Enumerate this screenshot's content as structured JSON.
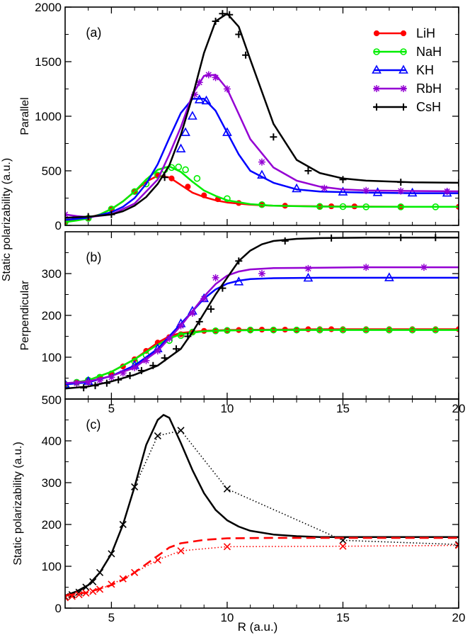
{
  "figure": {
    "ylabel_shared": "Static polarizability (a.u.)",
    "xlabel": "R (a.u.)"
  },
  "colors": {
    "LiH": "#ff0000",
    "NaH": "#00ee00",
    "KH": "#0000ff",
    "RbH": "#9400d3",
    "CsH": "#000000"
  },
  "chart_data": [
    {
      "type": "line",
      "panel_label": "(a)",
      "ylabel": "Parallel",
      "xlim": [
        3,
        20
      ],
      "ylim": [
        0,
        2000
      ],
      "yticks": [
        0,
        500,
        1000,
        1500,
        2000
      ],
      "xticks": [
        5,
        10,
        15,
        20
      ],
      "xtick_labels_shown": false,
      "legend": "top-right",
      "series": [
        {
          "name": "LiH",
          "marker": "filled-circle",
          "x": [
            3,
            3.5,
            4,
            4.5,
            5,
            5.5,
            6,
            6.5,
            7,
            7.5,
            8,
            8.5,
            9,
            9.5,
            10,
            11,
            12,
            14,
            16,
            18,
            20
          ],
          "y": [
            35,
            50,
            70,
            100,
            150,
            220,
            310,
            400,
            455,
            440,
            370,
            300,
            260,
            230,
            210,
            190,
            180,
            175,
            172,
            170,
            170
          ],
          "marker_x": [
            3,
            4,
            5,
            6,
            7,
            7.6,
            8.3,
            9,
            9.6,
            10.5,
            11.5,
            12.5,
            14,
            14.5,
            15.5,
            17.5,
            20
          ],
          "marker_y": [
            35,
            70,
            150,
            310,
            455,
            430,
            355,
            275,
            240,
            205,
            188,
            180,
            176,
            175,
            174,
            172,
            170
          ]
        },
        {
          "name": "NaH",
          "marker": "open-circle",
          "x": [
            3,
            3.5,
            4,
            4.5,
            5,
            5.5,
            6,
            6.5,
            7,
            7.5,
            8,
            8.5,
            9,
            9.5,
            10,
            11,
            12,
            14,
            16,
            18,
            20
          ],
          "y": [
            30,
            45,
            65,
            100,
            150,
            220,
            310,
            420,
            510,
            540,
            490,
            400,
            320,
            270,
            230,
            195,
            180,
            172,
            170,
            170,
            170
          ],
          "marker_x": [
            3,
            4,
            5,
            6,
            6.5,
            7,
            7.3,
            7.6,
            7.9,
            8.2,
            8.7,
            10,
            11.5,
            14,
            15,
            16,
            17.5,
            19
          ],
          "marker_y": [
            30,
            65,
            150,
            310,
            380,
            460,
            510,
            530,
            535,
            510,
            430,
            245,
            190,
            173,
            172,
            170,
            170,
            170
          ]
        },
        {
          "name": "KH",
          "marker": "open-triangle",
          "x": [
            3,
            4,
            5,
            5.5,
            6,
            6.5,
            7,
            7.5,
            8,
            8.5,
            9,
            9.5,
            10,
            10.5,
            11,
            12,
            13,
            14,
            16,
            18,
            20
          ],
          "y": [
            50,
            70,
            120,
            170,
            250,
            380,
            560,
            800,
            1030,
            1160,
            1160,
            1050,
            850,
            650,
            500,
            390,
            330,
            310,
            300,
            295,
            295
          ],
          "marker_x": [
            8,
            8.2,
            8.5,
            8.8,
            9.1,
            10,
            11.5,
            13,
            15,
            16.5,
            18,
            19.5
          ],
          "marker_y": [
            700,
            850,
            1000,
            1150,
            1140,
            850,
            460,
            335,
            305,
            300,
            296,
            295
          ]
        },
        {
          "name": "RbH",
          "marker": "asterisk",
          "x": [
            3,
            3.5,
            4,
            5,
            6,
            7,
            7.5,
            8,
            8.5,
            9,
            9.5,
            10,
            10.5,
            11,
            12,
            13,
            14,
            15,
            16,
            18,
            20
          ],
          "y": [
            100,
            85,
            75,
            100,
            200,
            420,
            650,
            900,
            1200,
            1370,
            1380,
            1250,
            1020,
            790,
            530,
            410,
            355,
            330,
            320,
            315,
            312
          ],
          "marker_x": [
            3,
            8.6,
            8.8,
            9.2,
            9.5,
            10,
            11.5,
            14.2,
            16,
            17.5,
            19.5
          ],
          "marker_y": [
            100,
            1200,
            1310,
            1380,
            1355,
            1250,
            580,
            340,
            320,
            315,
            312
          ]
        },
        {
          "name": "CsH",
          "marker": "plus",
          "x": [
            3,
            4,
            5,
            5.5,
            6,
            6.5,
            7,
            7.5,
            8,
            8.5,
            9,
            9.5,
            10,
            10.5,
            11,
            12,
            13,
            14,
            15,
            16,
            18,
            20
          ],
          "y": [
            70,
            80,
            100,
            130,
            180,
            260,
            380,
            550,
            830,
            1180,
            1580,
            1870,
            1940,
            1820,
            1520,
            930,
            600,
            480,
            430,
            410,
            395,
            390
          ],
          "marker_x": [
            3,
            4,
            5,
            7.3,
            9.5,
            9.8,
            10.1,
            10.5,
            10.8,
            12,
            13.5,
            15,
            17.5,
            20
          ],
          "marker_y": [
            70,
            80,
            100,
            440,
            1870,
            1940,
            1930,
            1750,
            1560,
            810,
            500,
            420,
            395,
            390
          ]
        }
      ]
    },
    {
      "type": "line",
      "panel_label": "(b)",
      "ylabel": "Perpendicular",
      "xlim": [
        3,
        20
      ],
      "ylim": [
        0,
        400
      ],
      "yticks": [
        100,
        200,
        300
      ],
      "xticks": [
        5,
        10,
        15,
        20
      ],
      "xtick_labels_shown": true,
      "series": [
        {
          "name": "LiH",
          "marker": "filled-circle",
          "x": [
            3,
            4,
            5,
            6,
            6.5,
            7,
            7.5,
            8,
            9,
            10,
            12,
            14,
            16,
            18,
            20
          ],
          "y": [
            35,
            45,
            65,
            95,
            115,
            135,
            150,
            158,
            163,
            165,
            166,
            167,
            167,
            167,
            167
          ],
          "marker_x": [
            3,
            3.5,
            4,
            4.5,
            5,
            5.5,
            6,
            6.5,
            7,
            7.5,
            8,
            8.5,
            9,
            9.5,
            10,
            10.5,
            11,
            11.5,
            12,
            12.5,
            13,
            13.5,
            14,
            14.5,
            15,
            16,
            17,
            18,
            19,
            20
          ],
          "marker_y": [
            35,
            40,
            45,
            52,
            60,
            78,
            95,
            115,
            135,
            148,
            155,
            160,
            163,
            164,
            165,
            165,
            166,
            166,
            166,
            166,
            166,
            167,
            167,
            167,
            167,
            167,
            167,
            167,
            167,
            167
          ]
        },
        {
          "name": "NaH",
          "marker": "open-circle",
          "x": [
            3,
            4,
            5,
            6,
            7,
            7.5,
            8,
            9,
            10,
            12,
            14,
            16,
            18,
            20
          ],
          "y": [
            35,
            45,
            65,
            95,
            130,
            145,
            155,
            162,
            164,
            165,
            165,
            165,
            165,
            165
          ],
          "marker_x": [
            3,
            3.5,
            4,
            4.5,
            5,
            6,
            6.5,
            7.5,
            8,
            8.5,
            9.5,
            10,
            11,
            12,
            13,
            14,
            15,
            16,
            17,
            18,
            19
          ],
          "marker_y": [
            35,
            40,
            45,
            52,
            60,
            90,
            105,
            140,
            152,
            160,
            163,
            164,
            165,
            165,
            165,
            165,
            165,
            165,
            165,
            165,
            165
          ]
        },
        {
          "name": "KH",
          "marker": "open-triangle",
          "x": [
            3,
            4,
            5,
            6,
            7,
            8,
            8.5,
            9,
            9.5,
            10,
            10.5,
            11,
            12,
            14,
            16,
            18,
            20
          ],
          "y": [
            35,
            40,
            55,
            80,
            120,
            180,
            210,
            240,
            262,
            276,
            283,
            287,
            289,
            290,
            290,
            290,
            290
          ],
          "marker_x": [
            3,
            4,
            6,
            7,
            8,
            8.5,
            9,
            10.5,
            13.5,
            17
          ],
          "marker_y": [
            35,
            42,
            80,
            120,
            180,
            210,
            240,
            280,
            289,
            290
          ]
        },
        {
          "name": "RbH",
          "marker": "asterisk",
          "x": [
            3,
            4,
            5,
            6,
            7,
            8,
            9,
            9.5,
            10,
            10.5,
            11,
            12,
            14,
            16,
            18,
            20
          ],
          "y": [
            38,
            42,
            55,
            75,
            115,
            175,
            245,
            275,
            295,
            305,
            310,
            313,
            314,
            315,
            315,
            315
          ],
          "marker_x": [
            3.5,
            4,
            4.5,
            5,
            5.5,
            6,
            6.5,
            7,
            7.5,
            8,
            8.5,
            9,
            9.5,
            11.5,
            13.5,
            16,
            18.5
          ],
          "marker_y": [
            38,
            40,
            45,
            52,
            62,
            75,
            92,
            115,
            145,
            175,
            205,
            240,
            290,
            300,
            312,
            315,
            315
          ]
        },
        {
          "name": "CsH",
          "marker": "plus",
          "x": [
            3,
            4,
            5,
            6,
            7,
            8,
            8.5,
            9,
            9.5,
            10,
            10.5,
            11,
            11.5,
            12,
            13,
            14,
            16,
            18,
            20
          ],
          "y": [
            25,
            30,
            42,
            58,
            80,
            120,
            160,
            205,
            250,
            290,
            330,
            355,
            370,
            378,
            383,
            385,
            386,
            386,
            386
          ],
          "marker_x": [
            3.8,
            4.3,
            4.8,
            5.3,
            5.8,
            6.3,
            6.8,
            7.3,
            7.8,
            8.3,
            8.8,
            9.3,
            9.8,
            10.5,
            12.5,
            14.5,
            17.5,
            19
          ],
          "marker_y": [
            27,
            32,
            38,
            46,
            56,
            68,
            80,
            98,
            120,
            150,
            185,
            215,
            265,
            330,
            378,
            385,
            386,
            386
          ]
        }
      ]
    },
    {
      "type": "line",
      "panel_label": "(c)",
      "ylabel": "Static polarizability (a.u.)",
      "xlabel": "R (a.u.)",
      "xlim": [
        3,
        20
      ],
      "ylim": [
        0,
        500
      ],
      "yticks": [
        0,
        100,
        200,
        300,
        400
      ],
      "top_tick_label": "500",
      "xticks": [
        5,
        10,
        15,
        20
      ],
      "xtick_labels_shown": true,
      "series": [
        {
          "style": "solid",
          "color": "#000000",
          "x": [
            3,
            3.5,
            4,
            4.5,
            5,
            5.5,
            6,
            6.5,
            7,
            7.25,
            7.5,
            8,
            8.5,
            9,
            9.5,
            10,
            10.5,
            11,
            12,
            13,
            14,
            15,
            16,
            18,
            20
          ],
          "y": [
            30,
            40,
            55,
            85,
            130,
            200,
            290,
            390,
            450,
            462,
            455,
            395,
            330,
            275,
            235,
            210,
            195,
            185,
            176,
            172,
            170,
            170,
            170,
            170,
            170
          ]
        },
        {
          "style": "dotted",
          "color": "#000000",
          "marker": "x",
          "x": [
            3,
            3.3,
            3.6,
            3.9,
            4.2,
            4.5,
            5,
            5.5,
            6,
            7,
            8,
            10,
            15,
            20
          ],
          "y": [
            27,
            32,
            38,
            50,
            63,
            85,
            130,
            200,
            290,
            412,
            425,
            285,
            162,
            152
          ]
        },
        {
          "style": "dashed",
          "color": "#ff0000",
          "x": [
            3,
            4,
            5,
            5.5,
            6,
            6.5,
            7,
            7.5,
            8,
            9,
            10,
            12,
            14,
            16,
            18,
            20
          ],
          "y": [
            30,
            38,
            55,
            68,
            85,
            105,
            125,
            145,
            155,
            163,
            167,
            168,
            168,
            168,
            168,
            168
          ]
        },
        {
          "style": "dotted",
          "color": "#ff0000",
          "marker": "x",
          "x": [
            3,
            3.3,
            3.6,
            3.9,
            4.2,
            4.5,
            5,
            5.5,
            6,
            7,
            8,
            10,
            15,
            20
          ],
          "y": [
            25,
            28,
            32,
            36,
            40,
            45,
            57,
            70,
            85,
            115,
            137,
            147,
            148,
            150
          ]
        }
      ]
    }
  ]
}
